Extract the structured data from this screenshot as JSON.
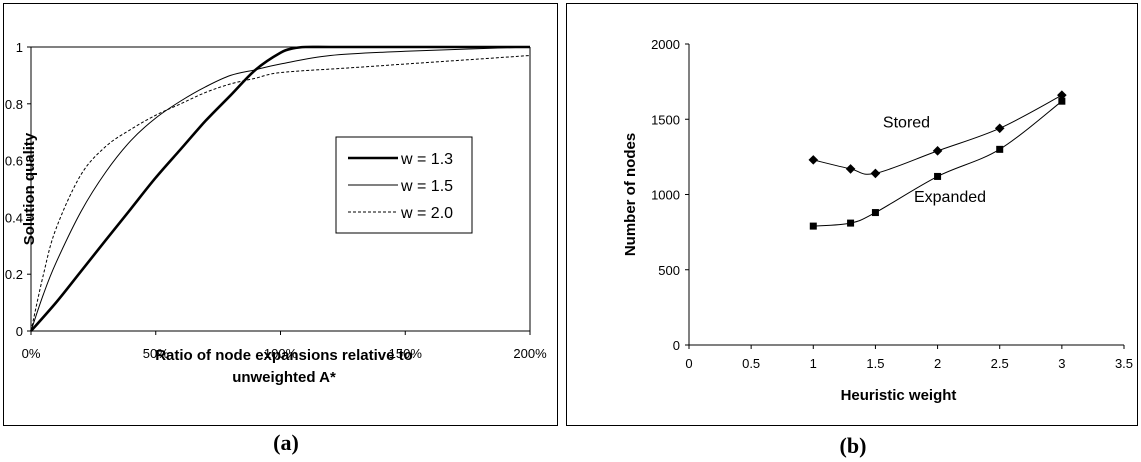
{
  "captions": {
    "a": "(a)",
    "b": "(b)"
  },
  "chart_data": [
    {
      "id": "a",
      "type": "line",
      "title": "",
      "xlabel_lines": [
        "Ratio of node expansions relative to",
        "unweighted A*"
      ],
      "ylabel": "Solution quality",
      "xlim": [
        0,
        200
      ],
      "ylim": [
        0,
        1
      ],
      "x_ticks": [
        0,
        50,
        100,
        150,
        200
      ],
      "x_tick_labels": [
        "0%",
        "50%",
        "100%",
        "150%",
        "200%"
      ],
      "y_ticks": [
        0,
        0.2,
        0.4,
        0.6,
        0.8,
        1
      ],
      "y_tick_labels": [
        "0",
        "0.2",
        "0.4",
        "0.6",
        "0.8",
        "1"
      ],
      "grid": false,
      "legend_position": "center-right",
      "series": [
        {
          "name": "w = 1.3",
          "style": "thick-solid",
          "x": [
            0,
            10,
            20,
            30,
            40,
            50,
            60,
            70,
            80,
            90,
            100,
            105,
            110,
            120,
            140,
            200
          ],
          "y": [
            0,
            0.1,
            0.21,
            0.32,
            0.43,
            0.54,
            0.64,
            0.74,
            0.83,
            0.92,
            0.98,
            0.995,
            1,
            1,
            1,
            1
          ]
        },
        {
          "name": "w = 1.5",
          "style": "thin-solid",
          "x": [
            0,
            5,
            10,
            20,
            30,
            40,
            50,
            60,
            70,
            80,
            90,
            100,
            120,
            150,
            200
          ],
          "y": [
            0,
            0.13,
            0.24,
            0.42,
            0.56,
            0.67,
            0.75,
            0.81,
            0.86,
            0.9,
            0.92,
            0.94,
            0.97,
            0.985,
            1
          ]
        },
        {
          "name": "w = 2.0",
          "style": "dashed",
          "x": [
            0,
            5,
            10,
            20,
            30,
            40,
            50,
            60,
            70,
            80,
            90,
            100,
            125,
            150,
            175,
            200
          ],
          "y": [
            0,
            0.2,
            0.36,
            0.55,
            0.65,
            0.71,
            0.76,
            0.8,
            0.84,
            0.87,
            0.89,
            0.91,
            0.925,
            0.94,
            0.955,
            0.97
          ]
        }
      ]
    },
    {
      "id": "b",
      "type": "line",
      "title": "",
      "xlabel": "Heuristic weight",
      "ylabel": "Number of nodes",
      "xlim": [
        0,
        3.5
      ],
      "ylim": [
        0,
        2000
      ],
      "x_ticks": [
        0,
        0.5,
        1,
        1.5,
        2,
        2.5,
        3,
        3.5
      ],
      "x_tick_labels": [
        "0",
        "0.5",
        "1",
        "1.5",
        "2",
        "2.5",
        "3",
        "3.5"
      ],
      "y_ticks": [
        0,
        500,
        1000,
        1500,
        2000
      ],
      "y_tick_labels": [
        "0",
        "500",
        "1000",
        "1500",
        "2000"
      ],
      "grid": false,
      "series": [
        {
          "name": "Stored",
          "marker": "diamond",
          "x": [
            1,
            1.3,
            1.5,
            2,
            2.5,
            3
          ],
          "y": [
            1230,
            1170,
            1140,
            1290,
            1440,
            1660
          ]
        },
        {
          "name": "Expanded",
          "marker": "square",
          "x": [
            1,
            1.3,
            1.5,
            2,
            2.5,
            3
          ],
          "y": [
            790,
            810,
            880,
            1120,
            1300,
            1620
          ]
        }
      ]
    }
  ]
}
